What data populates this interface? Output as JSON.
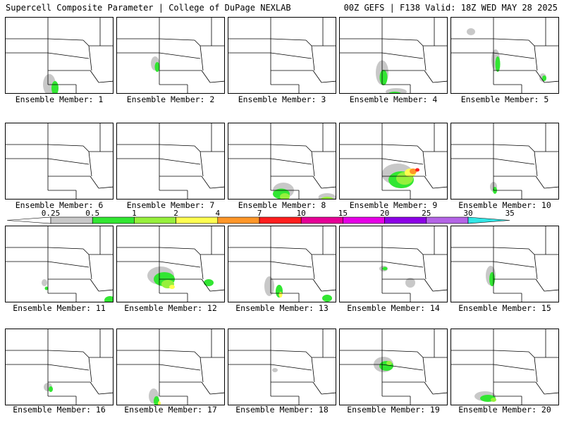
{
  "header": {
    "title": "Supercell Composite Parameter | College of DuPage NEXLAB",
    "valid": "00Z GEFS | F138 Valid: 18Z WED MAY 28 2025"
  },
  "members": [
    {
      "caption": "Ensemble Member: 1",
      "intensity": "moderate"
    },
    {
      "caption": "Ensemble Member: 2",
      "intensity": "moderate"
    },
    {
      "caption": "Ensemble Member: 3",
      "intensity": "none"
    },
    {
      "caption": "Ensemble Member: 4",
      "intensity": "moderate"
    },
    {
      "caption": "Ensemble Member: 5",
      "intensity": "moderate"
    },
    {
      "caption": "Ensemble Member: 6",
      "intensity": "none"
    },
    {
      "caption": "Ensemble Member: 7",
      "intensity": "none"
    },
    {
      "caption": "Ensemble Member: 8",
      "intensity": "high"
    },
    {
      "caption": "Ensemble Member: 9",
      "intensity": "extreme"
    },
    {
      "caption": "Ensemble Member: 10",
      "intensity": "moderate"
    },
    {
      "caption": "Ensemble Member: 11",
      "intensity": "low"
    },
    {
      "caption": "Ensemble Member: 12",
      "intensity": "high"
    },
    {
      "caption": "Ensemble Member: 13",
      "intensity": "high"
    },
    {
      "caption": "Ensemble Member: 14",
      "intensity": "low"
    },
    {
      "caption": "Ensemble Member: 15",
      "intensity": "moderate"
    },
    {
      "caption": "Ensemble Member: 16",
      "intensity": "low"
    },
    {
      "caption": "Ensemble Member: 17",
      "intensity": "moderate"
    },
    {
      "caption": "Ensemble Member: 18",
      "intensity": "none"
    },
    {
      "caption": "Ensemble Member: 19",
      "intensity": "moderate"
    },
    {
      "caption": "Ensemble Member: 20",
      "intensity": "high"
    }
  ],
  "colorbar": {
    "labels": [
      "0.25",
      "0.5",
      "1",
      "2",
      "4",
      "7",
      "10",
      "15",
      "20",
      "25",
      "30",
      "35"
    ],
    "colors": [
      "#c8c8c8",
      "#32e632",
      "#96f03c",
      "#ffff50",
      "#ff9628",
      "#ff1e1e",
      "#e60096",
      "#e600e6",
      "#8c00e6",
      "#b464e6",
      "#32e6e6"
    ]
  },
  "colors": {
    "gray": "#c8c8c8",
    "green": "#32e632",
    "lightgreen": "#96f03c",
    "yellow": "#ffff50",
    "orange": "#ff9628",
    "red": "#ff1e1e"
  }
}
